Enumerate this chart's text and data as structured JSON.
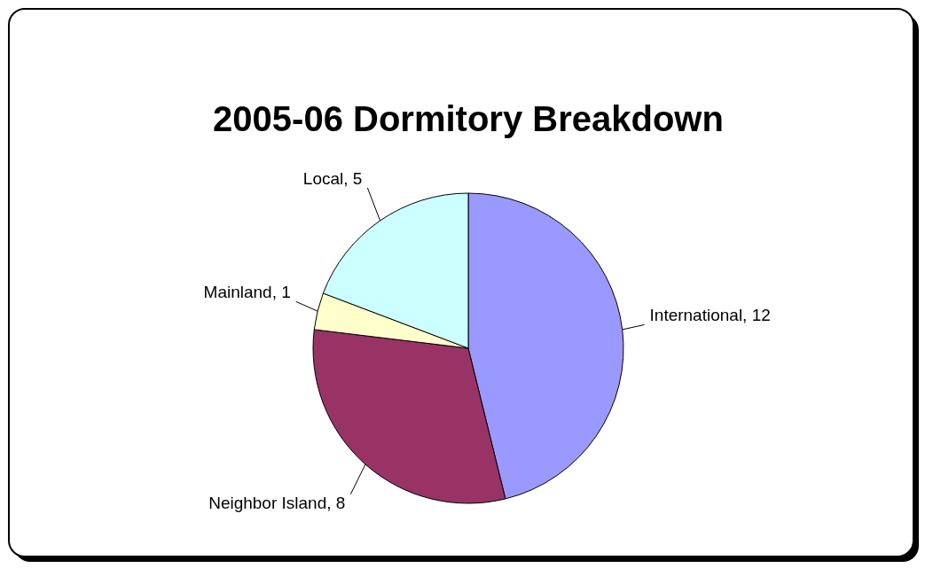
{
  "chart_data": {
    "type": "pie",
    "title": "2005-06 Dormitory Breakdown",
    "categories": [
      "International, 12",
      "Neighbor Island, 8",
      "Mainland, 1",
      "Local, 5"
    ],
    "values": [
      12,
      8,
      1,
      5
    ],
    "colors": [
      "#9999ff",
      "#993366",
      "#ffffcc",
      "#ccffff"
    ],
    "legend": false
  }
}
